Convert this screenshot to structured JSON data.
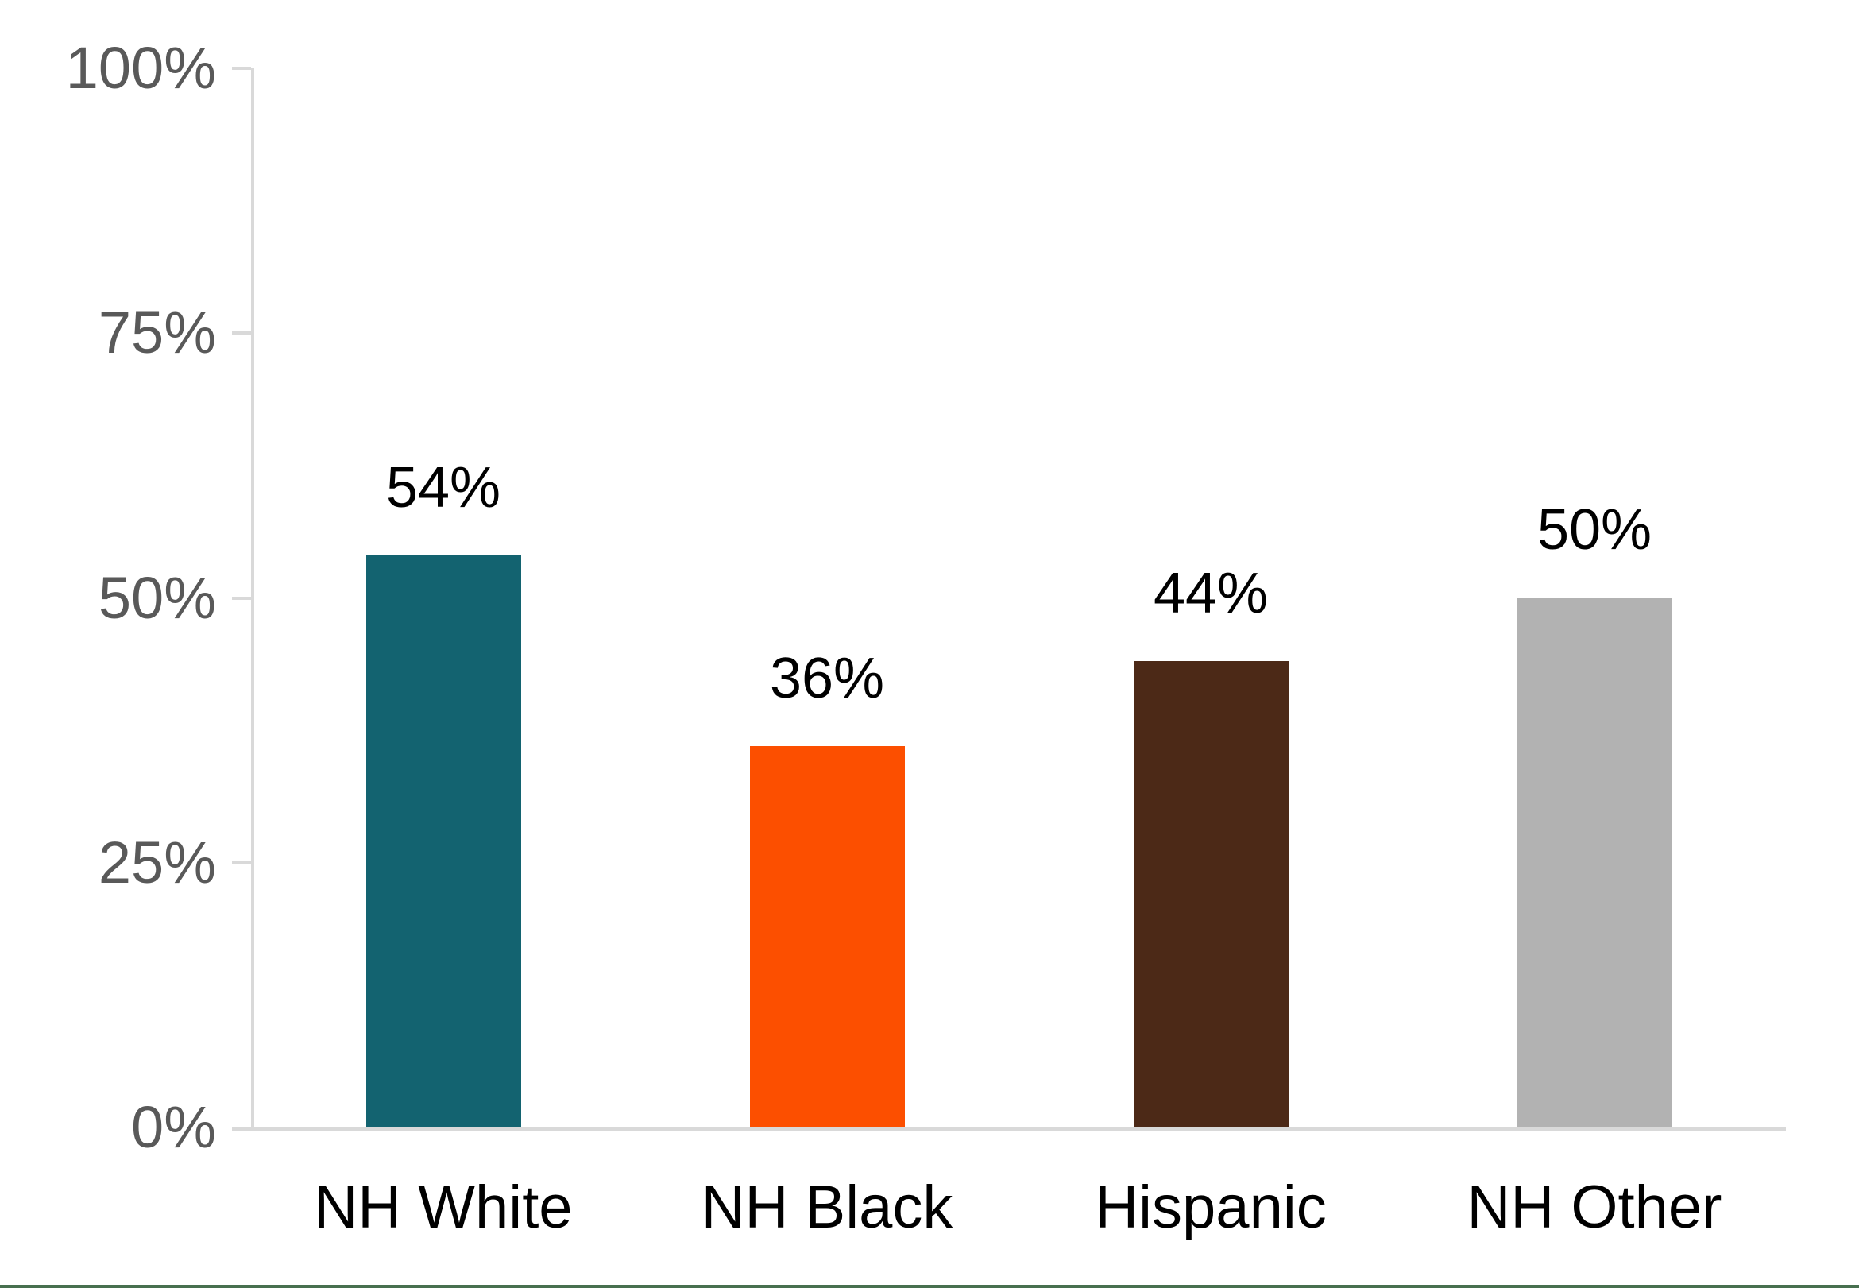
{
  "chart_data": {
    "type": "bar",
    "title": "",
    "xlabel": "",
    "ylabel": "",
    "categories": [
      "NH White",
      "NH Black",
      "Hispanic",
      "NH Other"
    ],
    "values": [
      54,
      36,
      44,
      50
    ],
    "data_labels": [
      "54%",
      "36%",
      "44%",
      "50%"
    ],
    "bar_colors": [
      "#136370",
      "#FC4F00",
      "#4C2917",
      "#B2B2B2"
    ],
    "ylim": [
      0,
      100
    ],
    "y_ticks": [
      {
        "label": "100%",
        "value": 100
      },
      {
        "label": "75%",
        "value": 75
      },
      {
        "label": "50%",
        "value": 50
      },
      {
        "label": "25%",
        "value": 25
      },
      {
        "label": "0%",
        "value": 0
      }
    ],
    "grid": false,
    "legend": false,
    "axis_color": "#D9D9D9",
    "tick_label_color": "#595959",
    "data_label_color": "#000000",
    "category_label_color": "#000000",
    "accent_line_color": "#47704F",
    "background_color": "#FFFFFF"
  }
}
